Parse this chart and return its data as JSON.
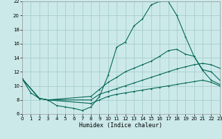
{
  "xlabel": "Humidex (Indice chaleur)",
  "xlim": [
    0,
    23
  ],
  "ylim": [
    6,
    22
  ],
  "yticks": [
    6,
    8,
    10,
    12,
    14,
    16,
    18,
    20,
    22
  ],
  "xticks": [
    0,
    1,
    2,
    3,
    4,
    5,
    6,
    7,
    8,
    9,
    10,
    11,
    12,
    13,
    14,
    15,
    16,
    17,
    18,
    19,
    20,
    21,
    22,
    23
  ],
  "bg_color": "#cce9e9",
  "grid_color": "#aad0d0",
  "line_color": "#006655",
  "curve1_x": [
    0,
    1,
    2,
    3,
    4,
    5,
    6,
    7,
    8,
    9,
    10,
    11,
    12,
    13,
    14,
    15,
    16,
    17,
    18,
    19,
    20,
    21,
    22,
    23
  ],
  "curve1_y": [
    11.0,
    9.0,
    8.2,
    8.0,
    7.2,
    7.0,
    6.8,
    6.5,
    7.0,
    8.5,
    11.5,
    15.5,
    16.2,
    18.5,
    19.5,
    21.5,
    22.0,
    22.0,
    20.0,
    17.0,
    14.2,
    12.2,
    10.8,
    10.2
  ],
  "curve2_x": [
    0,
    2,
    3,
    8,
    9,
    10,
    11,
    12,
    13,
    14,
    15,
    16,
    17,
    18,
    19,
    20,
    21,
    22,
    23
  ],
  "curve2_y": [
    11.0,
    8.2,
    8.0,
    8.5,
    9.5,
    10.5,
    11.2,
    12.0,
    12.5,
    13.0,
    13.5,
    14.2,
    15.0,
    15.2,
    14.5,
    14.2,
    12.3,
    12.0,
    10.8
  ],
  "curve3_x": [
    0,
    2,
    3,
    8,
    9,
    10,
    11,
    12,
    13,
    14,
    15,
    16,
    17,
    18,
    19,
    20,
    21,
    22,
    23
  ],
  "curve3_y": [
    11.0,
    8.2,
    8.0,
    8.0,
    8.8,
    9.2,
    9.6,
    10.0,
    10.4,
    10.8,
    11.2,
    11.6,
    12.0,
    12.4,
    12.7,
    13.0,
    13.2,
    13.0,
    12.5
  ],
  "curve4_x": [
    0,
    2,
    3,
    8,
    9,
    10,
    11,
    12,
    13,
    14,
    15,
    16,
    17,
    18,
    19,
    20,
    21,
    22,
    23
  ],
  "curve4_y": [
    11.0,
    8.2,
    8.0,
    7.5,
    8.0,
    8.5,
    8.8,
    9.0,
    9.2,
    9.4,
    9.6,
    9.8,
    10.0,
    10.2,
    10.4,
    10.6,
    10.8,
    10.5,
    10.0
  ]
}
